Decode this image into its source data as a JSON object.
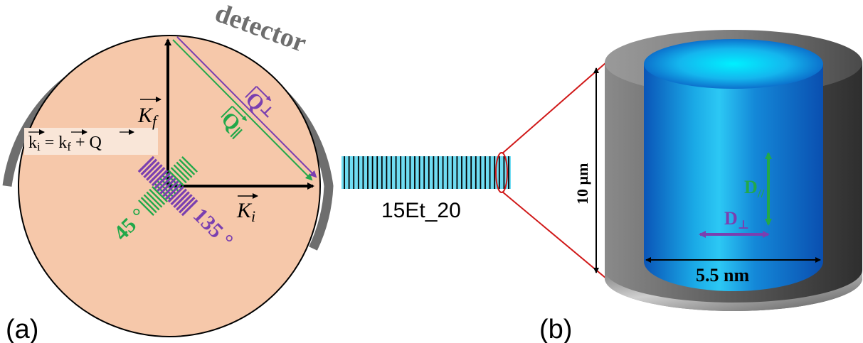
{
  "panel_a": {
    "panel_label": "(a)",
    "detector_label": "detector",
    "kf_label": "K",
    "kf_sub": "f",
    "ki_label": "K",
    "ki_sub": "i",
    "equation": {
      "k": "k",
      "i": "i",
      "eq": " = ",
      "f": "f",
      "plus": " + ",
      "q": "Q"
    },
    "q_perp_label": "Q",
    "q_perp_sub": "⊥",
    "q_par_label": "Q",
    "q_par_sub": "∥",
    "angle_45": "45 °",
    "angle_135": "135 °"
  },
  "sample": {
    "label": "15Et_20"
  },
  "panel_b": {
    "panel_label": "(b)",
    "height_label": "10 µm",
    "diameter_label": "5.5 nm",
    "d_par_label": "D",
    "d_par_sub": "//",
    "d_perp_label": "D",
    "d_perp_sub": "⊥"
  },
  "colors": {
    "circle_fill": "#f6c8aa",
    "detector": "#6e6e6e",
    "green": "#22a84a",
    "purple": "#7a3fb0",
    "pore_cyan": "#1ec8f0",
    "red": "#d01818"
  }
}
